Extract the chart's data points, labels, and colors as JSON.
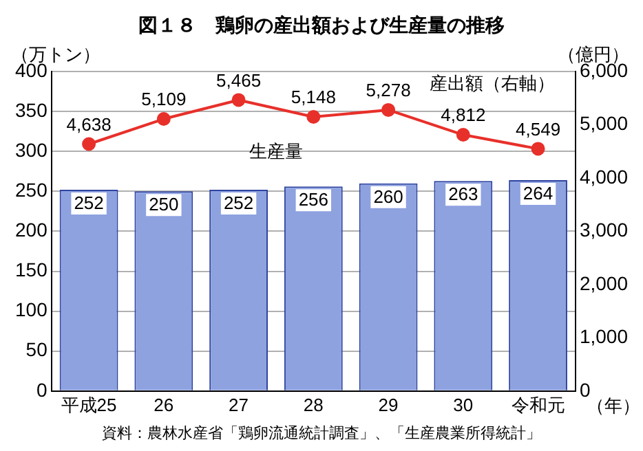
{
  "chart_data": {
    "type": "bar",
    "title": "図１８　鶏卵の産出額および生産量の推移",
    "ylabel": "（万トン）",
    "y2label": "（億円）",
    "xlabel": "（年）",
    "categories": [
      "平成25",
      "26",
      "27",
      "28",
      "29",
      "30",
      "令和元"
    ],
    "series": [
      {
        "name": "生産量",
        "color": "#8ea2e0",
        "values": [
          252,
          250,
          252,
          256,
          260,
          263,
          264
        ]
      },
      {
        "name": "産出額（右軸）",
        "type": "line",
        "axis": "y2",
        "color": "#e8302a",
        "marker": "circle",
        "values": [
          4638,
          5109,
          5465,
          5148,
          5278,
          4812,
          4549
        ],
        "value_labels": [
          "4,638",
          "5,109",
          "5,465",
          "5,148",
          "5,278",
          "4,812",
          "4,549"
        ]
      }
    ],
    "ylim": [
      0,
      400
    ],
    "yticks": [
      0,
      50,
      100,
      150,
      200,
      250,
      300,
      350,
      400
    ],
    "y2lim": [
      0,
      6000
    ],
    "y2ticks": [
      0,
      {
        "value": 1000,
        "label": "1,000"
      },
      {
        "value": 2000,
        "label": "2,000"
      },
      {
        "value": 3000,
        "label": "3,000"
      },
      {
        "value": 4000,
        "label": "4,000"
      },
      {
        "value": 5000,
        "label": "5,000"
      },
      {
        "value": 6000,
        "label": "6,000"
      }
    ],
    "grid": "y",
    "legend": false,
    "data_labels": true,
    "annotations": [
      "資料：農林水産省「鶏卵流通統計調査」、「生産農業所得統計」"
    ]
  }
}
